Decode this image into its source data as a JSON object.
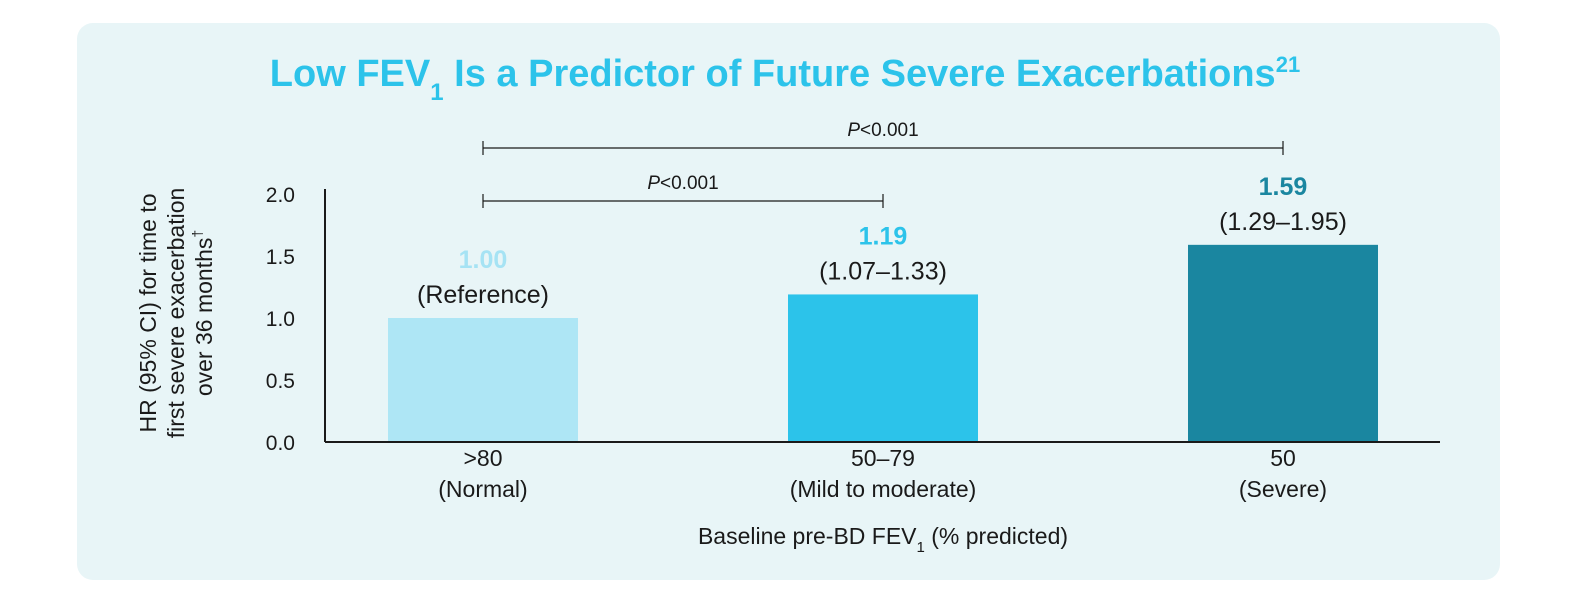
{
  "chart_data": {
    "type": "bar",
    "title": {
      "main_a": "Low FEV",
      "sub": "1",
      "main_b": " Is a Predictor of Future Severe Exacerbations",
      "sup": "21"
    },
    "ylabel": {
      "line1": "HR (95% CI) for time to",
      "line2": "first severe exacerbation",
      "line3": "over 36 months",
      "sup": "†"
    },
    "xlabel": {
      "a": "Baseline pre-BD FEV",
      "sub": "1",
      "b": " (% predicted)"
    },
    "ylim": [
      0,
      2.0
    ],
    "yticks": [
      "0.0",
      "0.5",
      "1.0",
      "1.5",
      "2.0"
    ],
    "categories": [
      {
        "line1": ">80",
        "line2": "(Normal)"
      },
      {
        "line1": "50–79",
        "line2": "(Mild to moderate)"
      },
      {
        "line1": "50",
        "line2": "(Severe)"
      }
    ],
    "values": [
      1.0,
      1.19,
      1.59
    ],
    "value_labels": [
      "1.00",
      "1.19",
      "1.59"
    ],
    "ci_labels": [
      "(Reference)",
      "(1.07–1.33)",
      "(1.29–1.95)"
    ],
    "colors": [
      "#aee6f5",
      "#2cc3ea",
      "#1a86a0"
    ],
    "label_colors": [
      "#a6e3f4",
      "#2cc3ea",
      "#1a86a0"
    ],
    "title_color": "#2cc3ea",
    "comparisons": [
      {
        "from": 0,
        "to": 2,
        "p_italic": "P",
        "p_rest": "<0.001"
      },
      {
        "from": 0,
        "to": 1,
        "p_italic": "P",
        "p_rest": "<0.001"
      }
    ],
    "grid": false,
    "legend": "none"
  }
}
